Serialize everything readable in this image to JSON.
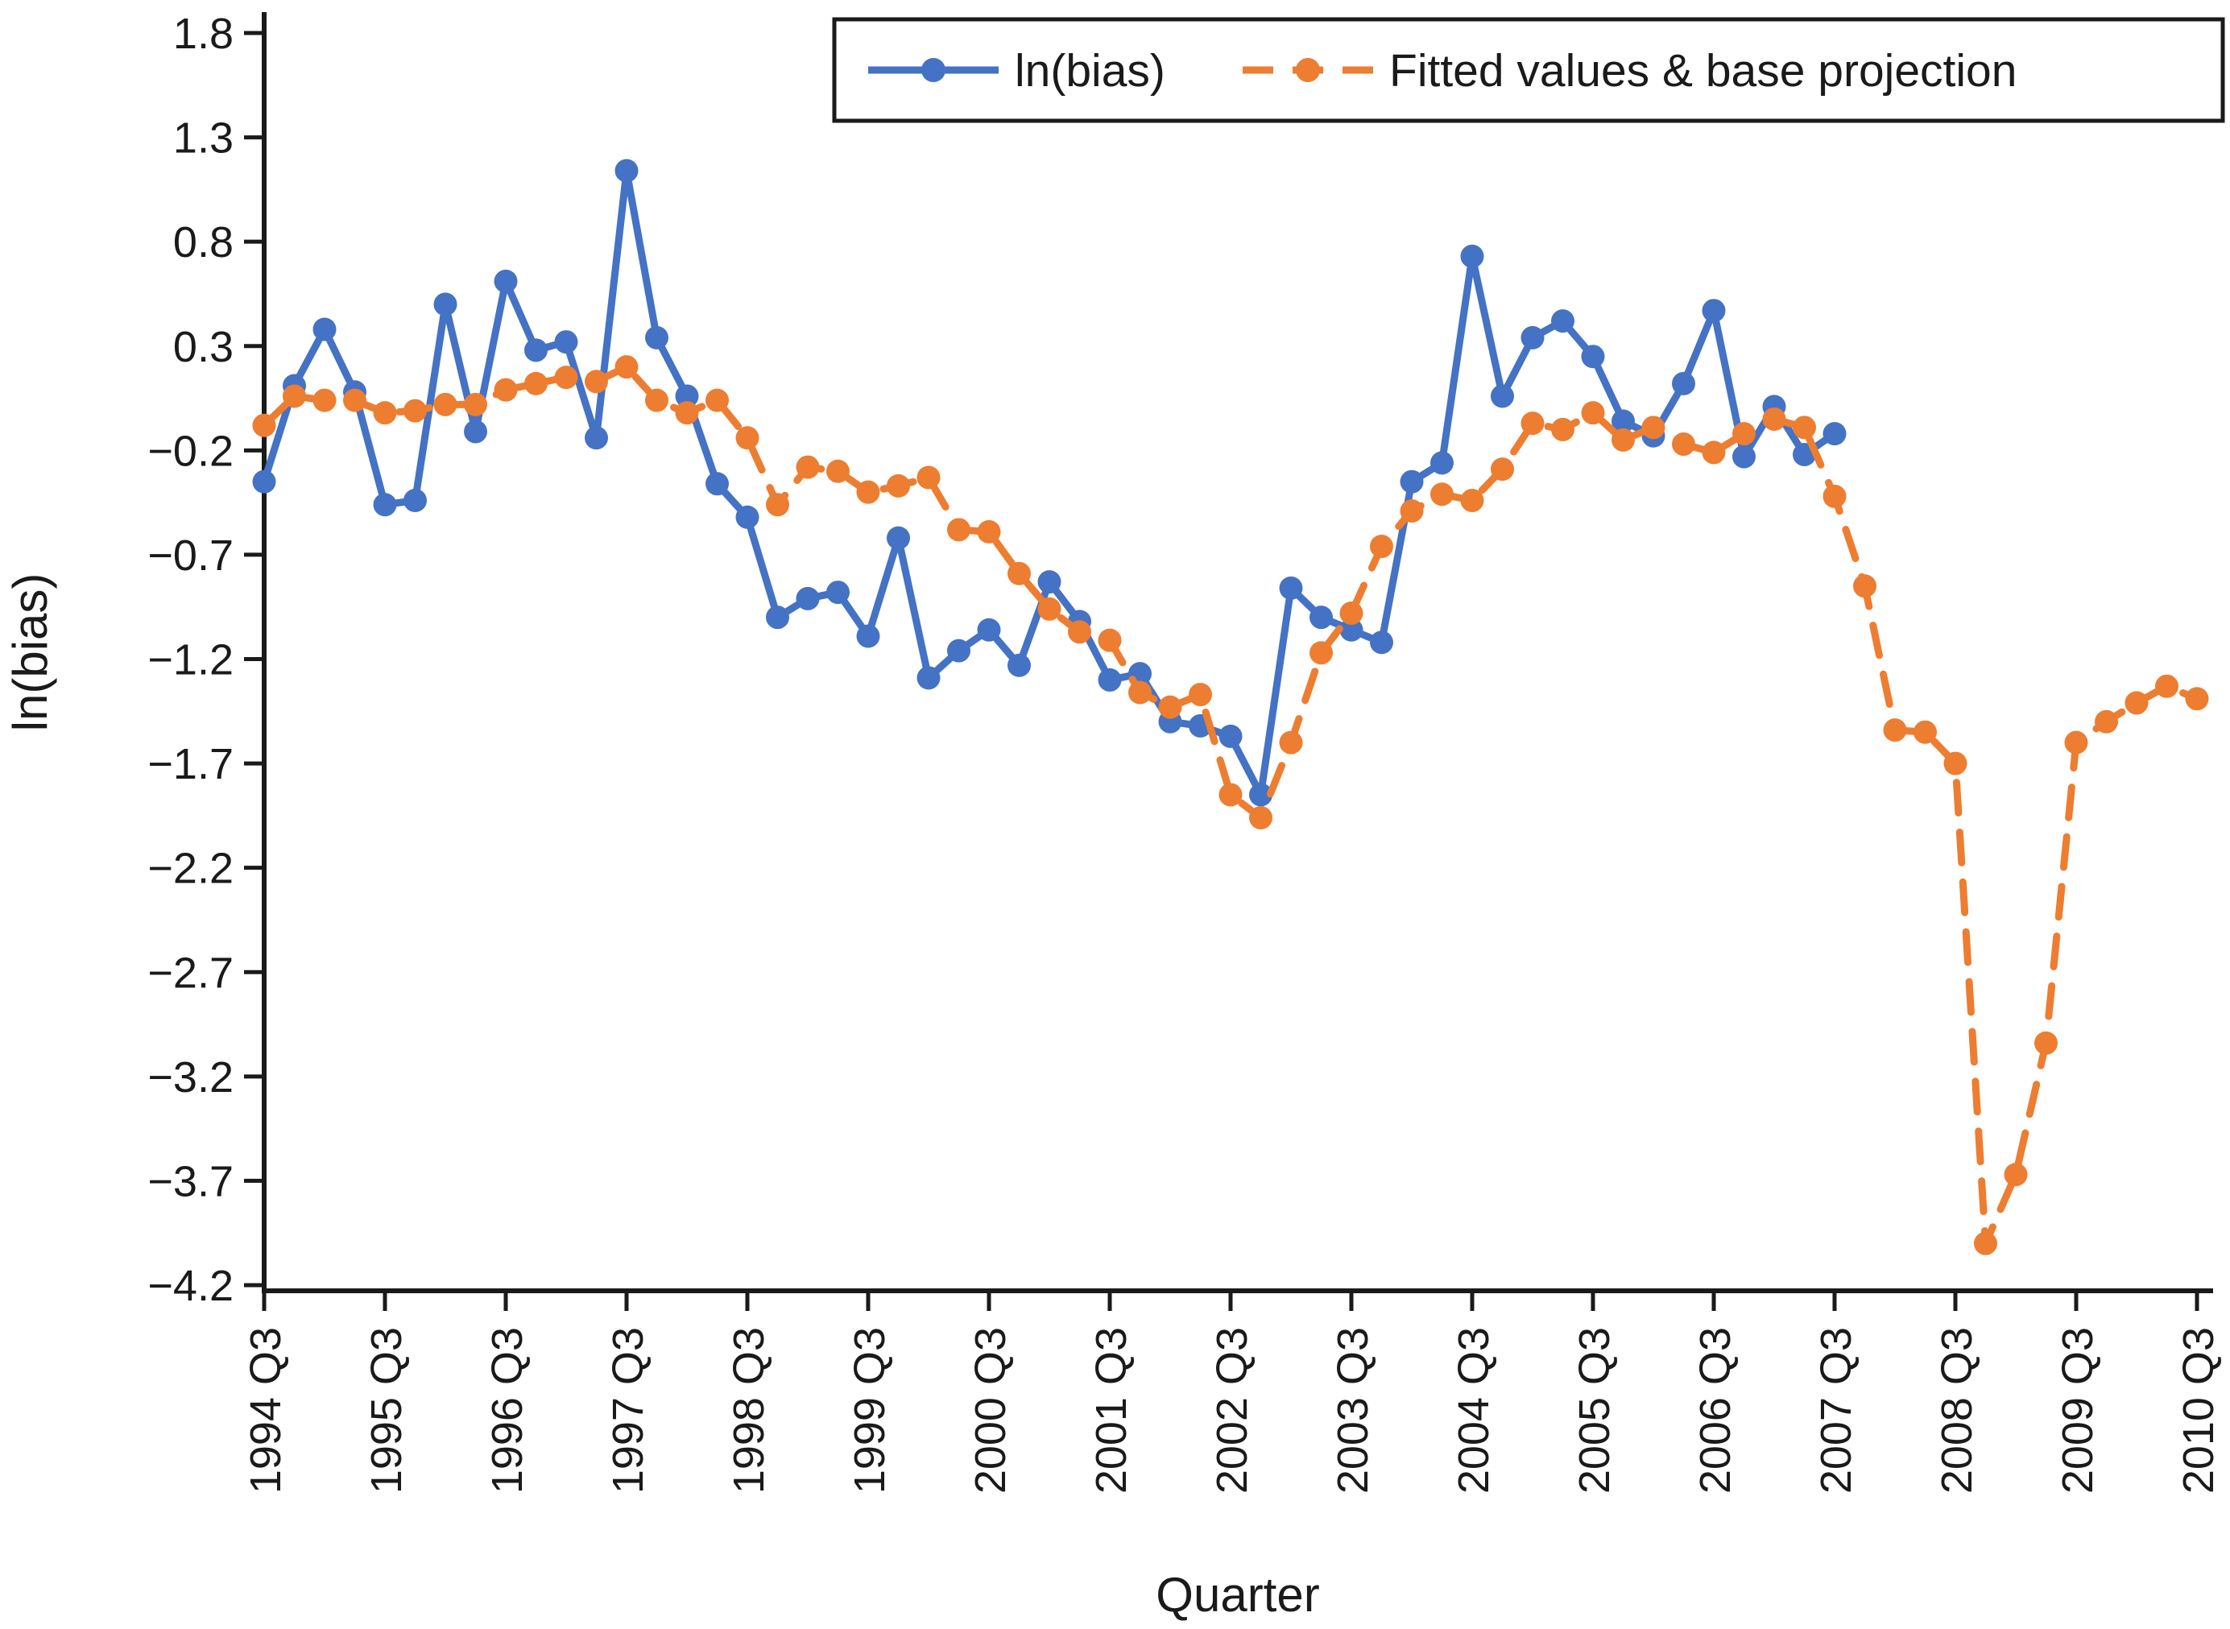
{
  "chart_data": {
    "type": "line",
    "title": "",
    "xlabel": "Quarter",
    "ylabel": "ln(bias)",
    "ylim": [
      -4.2,
      1.8
    ],
    "ytick_step": 0.5,
    "grid": "off",
    "legend_position": "top",
    "x_unit": "quarter",
    "x_tick_labels": [
      "1994 Q3",
      "1995 Q3",
      "1996 Q3",
      "1997 Q3",
      "1998 Q3",
      "1999 Q3",
      "2000 Q3",
      "2001 Q3",
      "2002 Q3",
      "2003 Q3",
      "2004 Q3",
      "2005 Q3",
      "2006 Q3",
      "2007 Q3",
      "2008 Q3",
      "2009 Q3",
      "2010 Q3"
    ],
    "quarters_per_tick": 4,
    "series": [
      {
        "name": "ln(bias)",
        "color": "#4472C4",
        "style": "solid",
        "start": "1994 Q3",
        "end": "2007 Q3",
        "values": [
          -0.35,
          0.11,
          0.38,
          0.08,
          -0.46,
          -0.44,
          0.5,
          -0.11,
          0.61,
          0.28,
          0.32,
          -0.14,
          1.14,
          0.34,
          0.06,
          -0.36,
          -0.52,
          -1.0,
          -0.91,
          -0.88,
          -1.09,
          -0.62,
          -1.29,
          -1.16,
          -1.06,
          -1.23,
          -0.83,
          -1.02,
          -1.3,
          -1.27,
          -1.5,
          -1.52,
          -1.57,
          -1.85,
          -0.86,
          -1.0,
          -1.06,
          -1.12,
          -0.35,
          -0.26,
          0.73,
          0.06,
          0.34,
          0.42,
          0.25,
          -0.06,
          -0.13,
          0.12,
          0.47,
          -0.23,
          0.01,
          -0.22,
          -0.12
        ]
      },
      {
        "name": "Fitted values & base projection",
        "color": "#ED7D31",
        "style": "dashed",
        "start": "1994 Q3",
        "end": "2010 Q3",
        "values": [
          -0.08,
          0.06,
          0.04,
          0.04,
          -0.02,
          -0.01,
          0.02,
          0.02,
          0.09,
          0.12,
          0.15,
          0.13,
          0.2,
          0.04,
          -0.02,
          0.04,
          -0.14,
          -0.46,
          -0.28,
          -0.3,
          -0.4,
          -0.37,
          -0.33,
          -0.58,
          -0.59,
          -0.79,
          -0.96,
          -1.07,
          -1.11,
          -1.36,
          -1.43,
          -1.37,
          -1.85,
          -1.96,
          -1.6,
          -1.17,
          -0.98,
          -0.66,
          -0.49,
          -0.41,
          -0.44,
          -0.29,
          -0.07,
          -0.1,
          -0.02,
          -0.15,
          -0.09,
          -0.17,
          -0.21,
          -0.12,
          -0.05,
          -0.09,
          -0.42,
          -0.85,
          -1.54,
          -1.55,
          -1.7,
          -4.0,
          -3.67,
          -3.04,
          -1.6,
          -1.5,
          -1.41,
          -1.33,
          -1.39
        ]
      }
    ]
  },
  "axis_color": "#1a1a1a",
  "minus_sign": "−"
}
